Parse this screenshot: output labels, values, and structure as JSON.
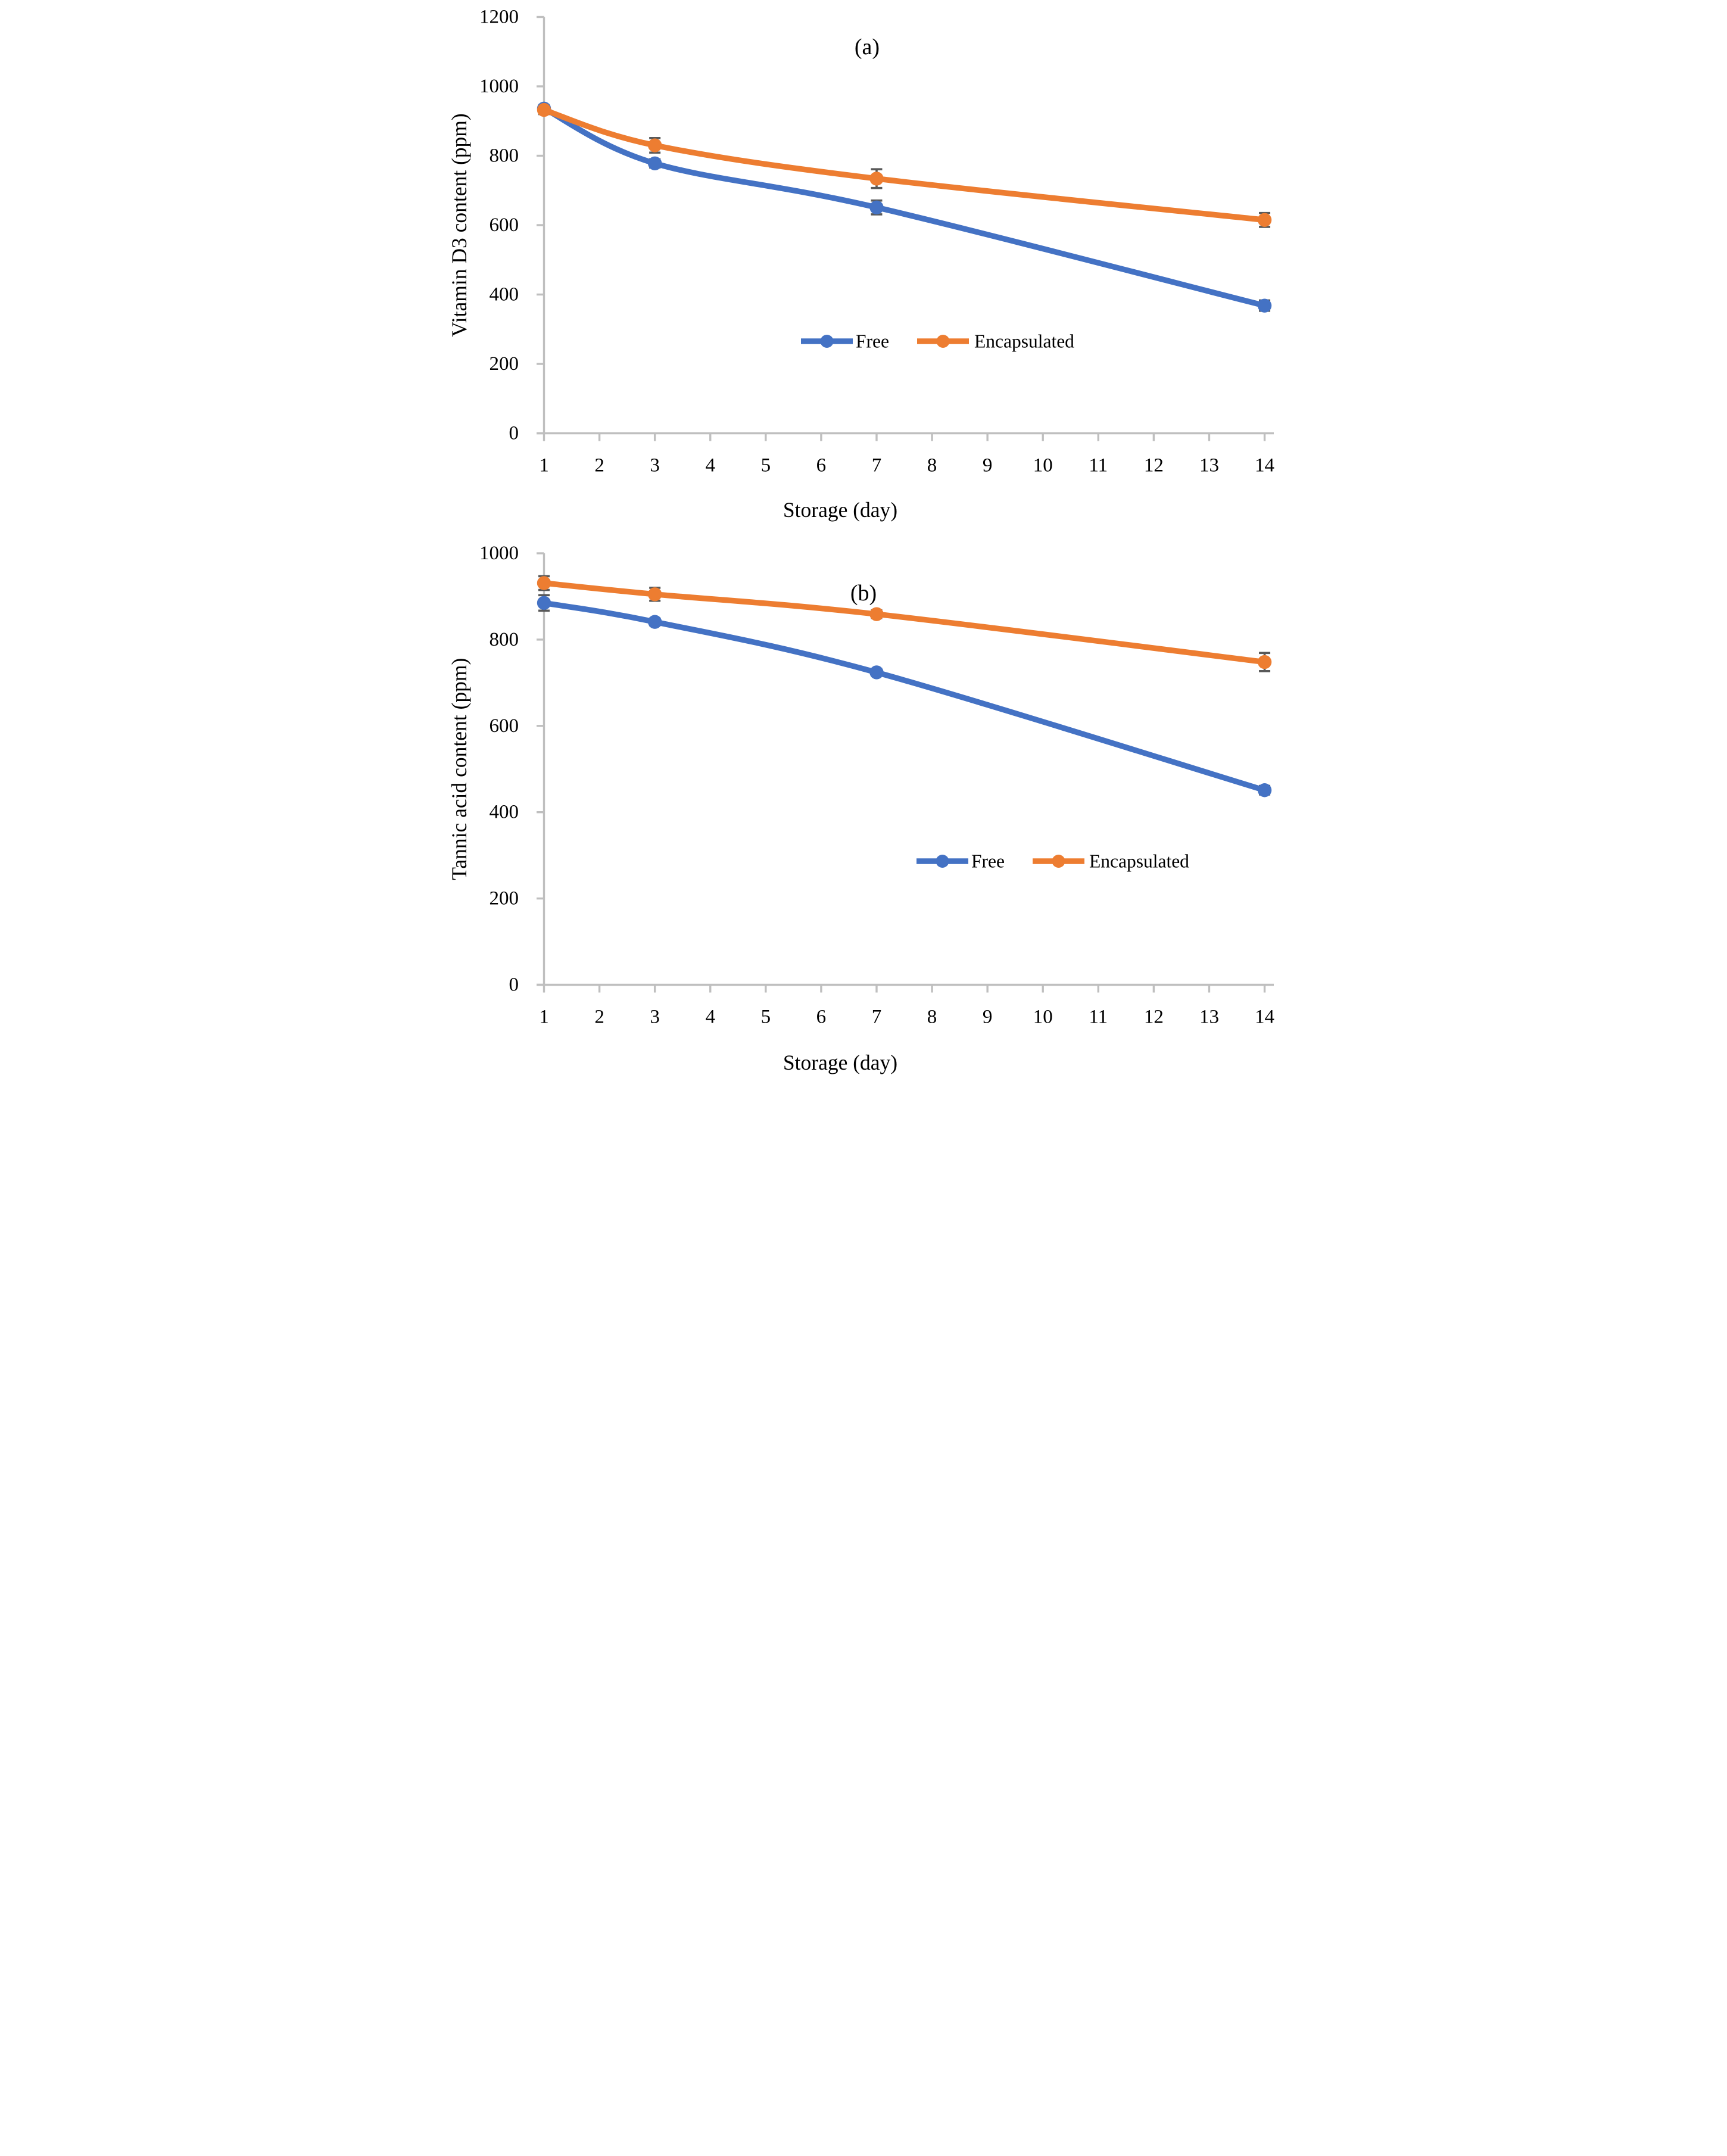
{
  "figure_title": "Storage stability line charts",
  "styles": {
    "series_blue": "#4472C4",
    "series_orange": "#ED7D31",
    "axis_color": "#BFBFBF",
    "error_bar_color": "#595959",
    "text_color": "#000000",
    "background": "#FFFFFF"
  },
  "chart_data": [
    {
      "type": "line",
      "panel_label": "(a)",
      "xlabel": "Storage (day)",
      "ylabel": "Vitamin D3 content (ppm)",
      "ylim": [
        0,
        1200
      ],
      "yticks": [
        0,
        200,
        400,
        600,
        800,
        1000,
        1200
      ],
      "xticks": [
        1,
        2,
        3,
        4,
        5,
        6,
        7,
        8,
        9,
        10,
        11,
        12,
        13,
        14
      ],
      "x": [
        1,
        3,
        7,
        14
      ],
      "grid": false,
      "legend_position": "inside-center",
      "legend": [
        "Free",
        "Encapsulated"
      ],
      "series": [
        {
          "name": "Free",
          "color": "#4472C4",
          "values": [
            936,
            778,
            651,
            368
          ],
          "errors": [
            10,
            12,
            20,
            15
          ]
        },
        {
          "name": "Encapsulated",
          "color": "#ED7D31",
          "values": [
            932,
            830,
            734,
            615
          ],
          "errors": [
            12,
            21,
            27,
            20
          ]
        }
      ]
    },
    {
      "type": "line",
      "panel_label": "(b)",
      "xlabel": "Storage (day)",
      "ylabel": "Tannic acid content (ppm)",
      "ylim": [
        0,
        1000
      ],
      "yticks": [
        0,
        200,
        400,
        600,
        800,
        1000
      ],
      "xticks": [
        1,
        2,
        3,
        4,
        5,
        6,
        7,
        8,
        9,
        10,
        11,
        12,
        13,
        14
      ],
      "x": [
        1,
        3,
        7,
        14
      ],
      "grid": false,
      "legend_position": "inside-lower-center",
      "legend": [
        "Free",
        "Encapsulated"
      ],
      "series": [
        {
          "name": "Free",
          "color": "#4472C4",
          "values": [
            885,
            841,
            724,
            451
          ],
          "errors": [
            18,
            8,
            8,
            10
          ]
        },
        {
          "name": "Encapsulated",
          "color": "#ED7D31",
          "values": [
            931,
            905,
            859,
            748
          ],
          "errors": [
            16,
            15,
            9,
            21
          ]
        }
      ]
    }
  ]
}
